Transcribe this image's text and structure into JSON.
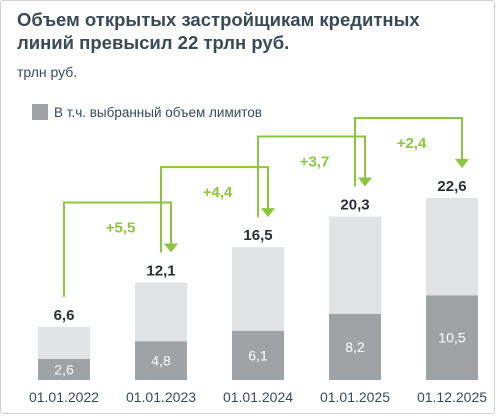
{
  "chart_data": {
    "type": "bar",
    "title": "Объем открытых застройщикам кредитных линий превысил 22 трлн руб.",
    "unit": "трлн руб.",
    "legend": [
      {
        "name": "В т.ч. выбранный объем лимитов",
        "color": "#9fa3a6"
      }
    ],
    "categories": [
      "01.01.2022",
      "01.01.2023",
      "01.01.2024",
      "01.01.2025",
      "01.12.2025"
    ],
    "series": [
      {
        "role": "total",
        "values": [
          6.6,
          12.1,
          16.5,
          20.3,
          22.6
        ],
        "labels": [
          "6,6",
          "12,1",
          "16,5",
          "20,3",
          "22,6"
        ],
        "color": "#e1e3e4"
      },
      {
        "name": "В т.ч. выбранный объем лимитов",
        "values": [
          2.6,
          4.8,
          6.1,
          8.2,
          10.5
        ],
        "labels": [
          "2,6",
          "4,8",
          "6,1",
          "8,2",
          "10,5"
        ],
        "color": "#9fa3a6"
      }
    ],
    "increments": [
      {
        "from": 0,
        "to": 1,
        "label": "+5,5"
      },
      {
        "from": 1,
        "to": 2,
        "label": "+4,4"
      },
      {
        "from": 2,
        "to": 3,
        "label": "+3,7"
      },
      {
        "from": 3,
        "to": 4,
        "label": "+2,4"
      }
    ],
    "arrow_color": "#8cc63f",
    "ylim": [
      0,
      22.6
    ],
    "grid": false
  }
}
